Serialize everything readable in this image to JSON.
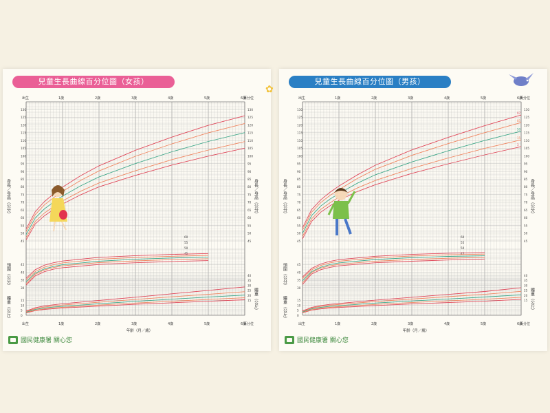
{
  "girl": {
    "title": "兒童生長曲線百分位圖（女孩）",
    "accent": "#ea5f96",
    "footer": "國民健康署 關心您"
  },
  "boy": {
    "title": "兒童生長曲線百分位圖（男孩）",
    "accent": "#2a7fc4",
    "footer": "國民健康署 關心您"
  },
  "colors": {
    "p3": "#e0485a",
    "p15": "#f08560",
    "p50": "#3fa88a",
    "p85": "#f08560",
    "p97": "#e0485a",
    "grid": "#b9b9b9",
    "background": "#fdfbf4"
  },
  "chart_data": [
    {
      "type": "line",
      "title": "兒童生長曲線百分位圖（女孩）",
      "xlabel": "年齡（月／歲）",
      "x_top_labels": [
        "出生",
        "1歲",
        "2歲",
        "3歲",
        "4歲",
        "5歲",
        "6歲",
        "百分位"
      ],
      "x_bottom_labels": [
        "出生",
        "1歲",
        "2歲",
        "3歲",
        "4歲",
        "5歲",
        "6歲",
        "百分位"
      ],
      "x_unit": "months",
      "xlim": [
        0,
        72
      ],
      "length_axis_label": "身長／身高（公分）",
      "head_axis_label": "頭圍（公分）",
      "weight_axis_label": "體重（公斤）",
      "length_ticks": [
        "130",
        "125",
        "120",
        "115",
        "110",
        "105",
        "100",
        "95",
        "90",
        "85",
        "80",
        "75",
        "70",
        "65",
        "60",
        "55",
        "50",
        "45"
      ],
      "head_ticks": [
        "45",
        "40",
        "35",
        "30"
      ],
      "head_right_ticks": [
        "60",
        "55",
        "50",
        "45"
      ],
      "weight_ticks": [
        "15",
        "10",
        "5",
        "0"
      ],
      "weight_right_ticks": [
        "40",
        "35",
        "30",
        "25",
        "20",
        "15"
      ],
      "panels": {
        "length": {
          "ylim": [
            45,
            135
          ],
          "x": [
            0,
            3,
            6,
            9,
            12,
            18,
            24,
            36,
            48,
            60,
            72
          ],
          "series": [
            {
              "values": [
                45.6,
                56.0,
                61.2,
                65.3,
                68.9,
                74.9,
                80.0,
                87.4,
                94.1,
                99.9,
                105.0
              ]
            },
            {
              "values": [
                47.2,
                57.6,
                63.0,
                67.2,
                70.9,
                77.2,
                82.5,
                90.4,
                97.6,
                103.8,
                109.3
              ]
            },
            {
              "values": [
                49.1,
                59.8,
                65.7,
                70.1,
                74.0,
                80.7,
                86.4,
                95.1,
                102.7,
                109.4,
                115.1
              ]
            },
            {
              "values": [
                51.0,
                62.0,
                68.3,
                73.0,
                77.1,
                84.2,
                90.3,
                99.8,
                107.8,
                115.0,
                121.0
              ]
            },
            {
              "values": [
                52.7,
                63.9,
                70.4,
                75.4,
                79.8,
                87.3,
                93.6,
                103.7,
                112.2,
                119.8,
                126.0
              ]
            }
          ]
        },
        "head": {
          "ylim": [
            30,
            55
          ],
          "x": [
            0,
            3,
            6,
            9,
            12,
            24,
            36,
            48,
            60
          ],
          "series": [
            {
              "values": [
                31.7,
                37.7,
                40.4,
                42.0,
                43.0,
                45.1,
                46.2,
                47.0,
                47.6
              ]
            },
            {
              "values": [
                32.7,
                38.8,
                41.5,
                43.1,
                44.2,
                46.3,
                47.4,
                48.2,
                48.8
              ]
            },
            {
              "values": [
                33.9,
                39.5,
                42.2,
                43.8,
                44.9,
                47.2,
                48.5,
                49.3,
                49.9
              ]
            },
            {
              "values": [
                35.1,
                40.5,
                43.3,
                44.9,
                46.1,
                48.5,
                49.6,
                50.4,
                51.0
              ]
            },
            {
              "values": [
                36.1,
                41.7,
                44.6,
                46.2,
                47.3,
                49.7,
                50.8,
                51.6,
                52.2
              ]
            }
          ]
        },
        "weight": {
          "ylim": [
            0,
            40
          ],
          "x": [
            0,
            3,
            6,
            9,
            12,
            24,
            36,
            48,
            60,
            72
          ],
          "series": [
            {
              "values": [
                2.4,
                4.6,
                5.8,
                6.6,
                7.3,
                9.2,
                11.0,
                12.5,
                14.0,
                15.5
              ]
            },
            {
              "values": [
                2.8,
                5.0,
                6.4,
                7.3,
                8.0,
                10.2,
                12.2,
                14.0,
                15.8,
                17.5
              ]
            },
            {
              "values": [
                3.2,
                5.8,
                7.3,
                8.2,
                8.9,
                11.5,
                13.9,
                16.1,
                18.2,
                20.2
              ]
            },
            {
              "values": [
                3.7,
                6.6,
                8.2,
                9.3,
                10.2,
                13.0,
                15.8,
                18.5,
                21.0,
                23.6
              ]
            },
            {
              "values": [
                4.2,
                7.5,
                9.3,
                10.5,
                11.5,
                14.8,
                18.1,
                21.5,
                24.9,
                28.4
              ]
            }
          ]
        }
      }
    },
    {
      "type": "line",
      "title": "兒童生長曲線百分位圖（男孩）",
      "xlabel": "年齡（月／歲）",
      "x_top_labels": [
        "出生",
        "1歲",
        "2歲",
        "3歲",
        "4歲",
        "5歲",
        "6歲",
        "百分位"
      ],
      "x_bottom_labels": [
        "出生",
        "1歲",
        "2歲",
        "3歲",
        "4歲",
        "5歲",
        "6歲",
        "百分位"
      ],
      "x_unit": "months",
      "xlim": [
        0,
        72
      ],
      "length_axis_label": "身長／身高（公分）",
      "head_axis_label": "頭圍（公分）",
      "weight_axis_label": "體重（公斤）",
      "length_ticks": [
        "130",
        "125",
        "120",
        "115",
        "110",
        "105",
        "100",
        "95",
        "90",
        "85",
        "80",
        "75",
        "70",
        "65",
        "60",
        "55",
        "50",
        "45"
      ],
      "head_ticks": [
        "45",
        "40",
        "35",
        "30"
      ],
      "head_right_ticks": [
        "60",
        "55",
        "50",
        "45"
      ],
      "weight_ticks": [
        "15",
        "10",
        "5",
        "0"
      ],
      "weight_right_ticks": [
        "40",
        "35",
        "30",
        "25",
        "20",
        "15"
      ],
      "percentile_labels": [
        "97",
        "85",
        "50",
        "15",
        "3"
      ],
      "panels": {
        "length": {
          "ylim": [
            45,
            135
          ],
          "x": [
            0,
            3,
            6,
            9,
            12,
            18,
            24,
            36,
            48,
            60,
            72
          ],
          "series": [
            {
              "values": [
                46.3,
                57.6,
                63.6,
                67.7,
                71.3,
                76.9,
                81.4,
                88.7,
                94.9,
                100.7,
                106.0
              ]
            },
            {
              "values": [
                47.9,
                59.3,
                65.4,
                69.6,
                73.3,
                79.2,
                84.1,
                91.9,
                98.7,
                104.9,
                110.4
              ]
            },
            {
              "values": [
                49.9,
                61.4,
                67.6,
                72.0,
                75.7,
                82.3,
                87.8,
                96.1,
                103.3,
                110.0,
                116.0
              ]
            },
            {
              "values": [
                51.8,
                63.5,
                69.8,
                74.4,
                78.2,
                85.3,
                91.4,
                100.4,
                108.0,
                115.1,
                121.6
              ]
            },
            {
              "values": [
                53.4,
                65.3,
                71.6,
                76.4,
                80.5,
                87.7,
                94.0,
                103.9,
                112.0,
                119.6,
                126.5
              ]
            }
          ]
        },
        "head": {
          "ylim": [
            30,
            55
          ],
          "x": [
            0,
            3,
            6,
            9,
            12,
            24,
            36,
            48,
            60
          ],
          "series": [
            {
              "values": [
                32.1,
                38.9,
                41.7,
                43.2,
                44.2,
                46.2,
                47.2,
                48.0,
                48.6
              ]
            },
            {
              "values": [
                33.1,
                39.9,
                42.7,
                44.2,
                45.2,
                47.2,
                48.3,
                49.1,
                49.7
              ]
            },
            {
              "values": [
                34.5,
                40.5,
                43.3,
                45.0,
                46.1,
                48.3,
                49.5,
                50.3,
                50.7
              ]
            },
            {
              "values": [
                35.8,
                41.6,
                44.4,
                46.1,
                47.2,
                49.4,
                50.6,
                51.4,
                51.8
              ]
            },
            {
              "values": [
                36.9,
                42.6,
                45.4,
                47.1,
                48.2,
                50.4,
                51.6,
                52.4,
                52.8
              ]
            }
          ]
        },
        "weight": {
          "ylim": [
            0,
            40
          ],
          "x": [
            0,
            3,
            6,
            9,
            12,
            24,
            36,
            48,
            60,
            72
          ],
          "series": [
            {
              "values": [
                2.5,
                5.1,
                6.4,
                7.2,
                7.8,
                9.7,
                11.3,
                12.7,
                14.1,
                15.9
              ]
            },
            {
              "values": [
                2.9,
                5.6,
                7.1,
                7.9,
                8.6,
                10.8,
                12.7,
                14.4,
                16.0,
                18.0
              ]
            },
            {
              "values": [
                3.3,
                6.4,
                7.9,
                8.9,
                9.6,
                12.2,
                14.3,
                16.3,
                18.3,
                20.5
              ]
            },
            {
              "values": [
                3.9,
                7.2,
                8.9,
                10.0,
                10.8,
                13.7,
                16.2,
                18.6,
                21.0,
                23.9
              ]
            },
            {
              "values": [
                4.3,
                7.9,
                9.7,
                10.9,
                11.8,
                15.1,
                18.0,
                20.9,
                23.8,
                27.5
              ]
            }
          ]
        }
      }
    }
  ]
}
